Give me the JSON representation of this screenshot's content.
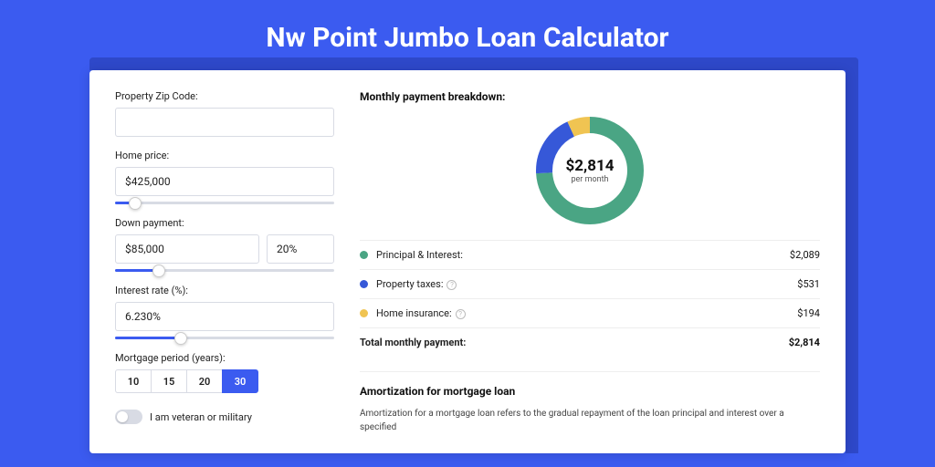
{
  "page": {
    "title": "Nw Point Jumbo Loan Calculator",
    "bg_color": "#3b5bf0"
  },
  "form": {
    "zip": {
      "label": "Property Zip Code:",
      "value": ""
    },
    "home_price": {
      "label": "Home price:",
      "value": "$425,000",
      "slider_pct": 9
    },
    "down_payment": {
      "label": "Down payment:",
      "value": "$85,000",
      "pct": "20%",
      "slider_pct": 20
    },
    "interest_rate": {
      "label": "Interest rate (%):",
      "value": "6.230%",
      "slider_pct": 30
    },
    "period": {
      "label": "Mortgage period (years):",
      "options": [
        "10",
        "15",
        "20",
        "30"
      ],
      "selected": "30"
    },
    "veteran": {
      "label": "I am veteran or military",
      "checked": false
    }
  },
  "breakdown": {
    "title": "Monthly payment breakdown:",
    "donut": {
      "value": "$2,814",
      "sub": "per month",
      "segments": [
        {
          "color": "#4aa584",
          "pct": 74
        },
        {
          "color": "#3658d8",
          "pct": 19
        },
        {
          "color": "#f0c452",
          "pct": 7
        }
      ],
      "stroke_width": 18,
      "radius": 50
    },
    "items": [
      {
        "color": "#4aa584",
        "label": "Principal & Interest:",
        "value": "$2,089",
        "info": false
      },
      {
        "color": "#3658d8",
        "label": "Property taxes:",
        "value": "$531",
        "info": true
      },
      {
        "color": "#f0c452",
        "label": "Home insurance:",
        "value": "$194",
        "info": true
      }
    ],
    "total": {
      "label": "Total monthly payment:",
      "value": "$2,814"
    }
  },
  "amortization": {
    "title": "Amortization for mortgage loan",
    "text": "Amortization for a mortgage loan refers to the gradual repayment of the loan principal and interest over a specified"
  }
}
